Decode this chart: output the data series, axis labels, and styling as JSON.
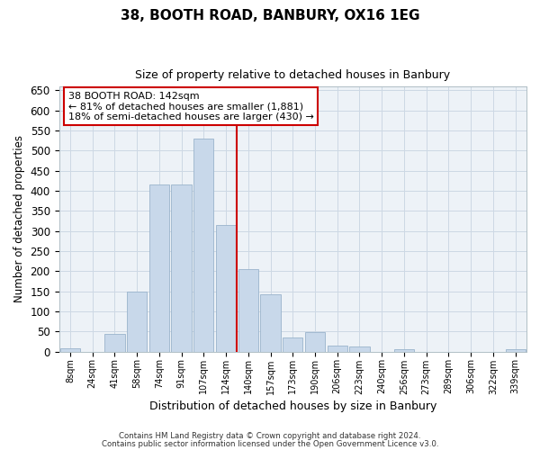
{
  "title": "38, BOOTH ROAD, BANBURY, OX16 1EG",
  "subtitle": "Size of property relative to detached houses in Banbury",
  "xlabel": "Distribution of detached houses by size in Banbury",
  "ylabel": "Number of detached properties",
  "bar_color": "#c8d8ea",
  "bar_edge_color": "#9ab4cc",
  "background_color": "#ffffff",
  "plot_bg_color": "#edf2f7",
  "grid_color": "#cdd8e4",
  "bin_labels": [
    "8sqm",
    "24sqm",
    "41sqm",
    "58sqm",
    "74sqm",
    "91sqm",
    "107sqm",
    "124sqm",
    "140sqm",
    "157sqm",
    "173sqm",
    "190sqm",
    "206sqm",
    "223sqm",
    "240sqm",
    "256sqm",
    "273sqm",
    "289sqm",
    "306sqm",
    "322sqm",
    "339sqm"
  ],
  "bar_heights": [
    8,
    0,
    44,
    150,
    415,
    415,
    530,
    315,
    205,
    143,
    35,
    48,
    15,
    13,
    0,
    5,
    0,
    0,
    0,
    0,
    5
  ],
  "ylim": [
    0,
    660
  ],
  "yticks": [
    0,
    50,
    100,
    150,
    200,
    250,
    300,
    350,
    400,
    450,
    500,
    550,
    600,
    650
  ],
  "property_line_label": "38 BOOTH ROAD: 142sqm",
  "annotation_line1": "← 81% of detached houses are smaller (1,881)",
  "annotation_line2": "18% of semi-detached houses are larger (430) →",
  "footer_line1": "Contains HM Land Registry data © Crown copyright and database right 2024.",
  "footer_line2": "Contains public sector information licensed under the Open Government Licence v3.0.",
  "vline_color": "#cc0000",
  "vline_x": 7.5
}
